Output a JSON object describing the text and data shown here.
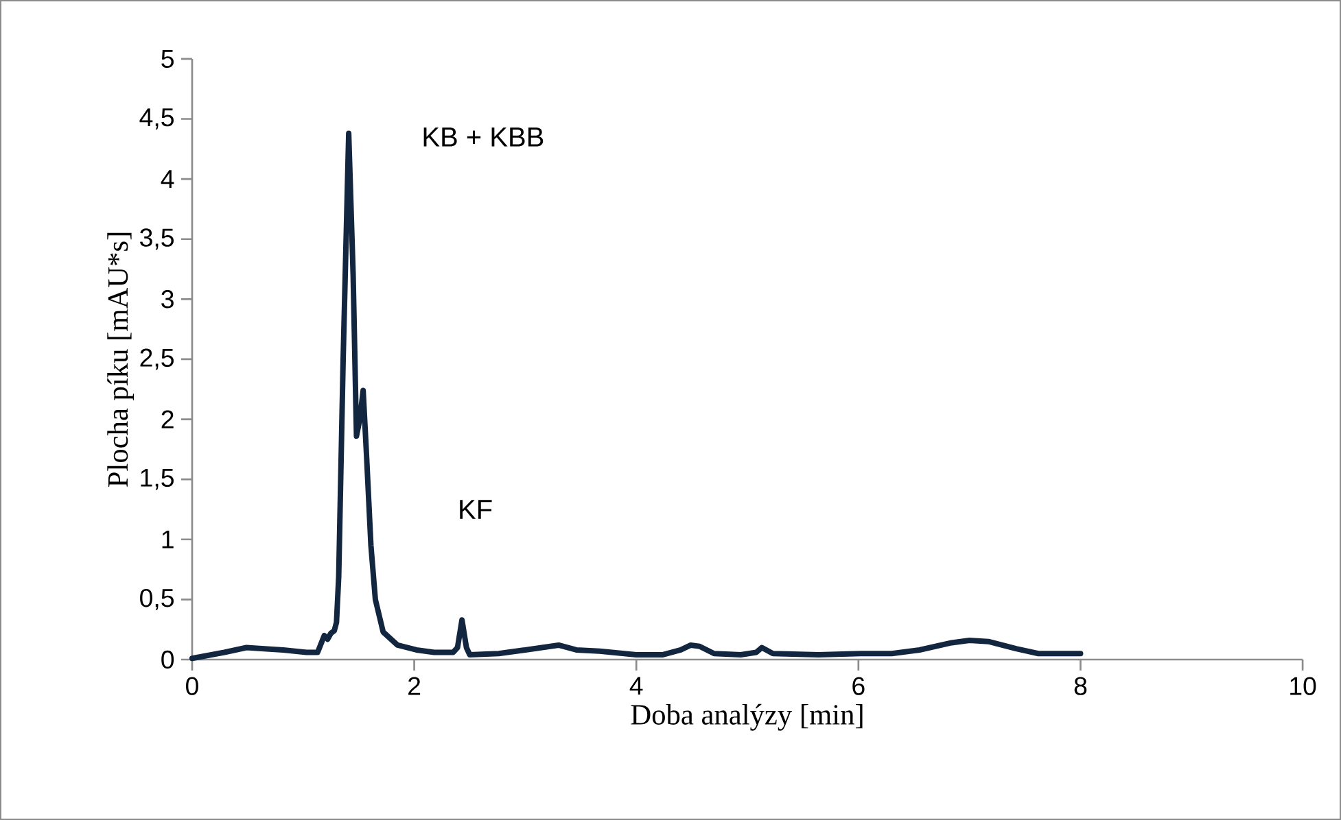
{
  "chart_data": {
    "type": "line",
    "xlabel": "Doba analýzy [min]",
    "ylabel": "Plocha píku [mAU*s]",
    "xlim": [
      0,
      10
    ],
    "xticks": [
      0,
      2,
      4,
      6,
      8,
      10
    ],
    "ylim": [
      0,
      5
    ],
    "yticks": [
      0,
      {
        "value": 0.5,
        "label": "0,5"
      },
      1,
      {
        "value": 1.5,
        "label": "1,5"
      },
      2,
      {
        "value": 2.5,
        "label": "2,5"
      },
      3,
      {
        "value": 3.5,
        "label": "3,5"
      },
      4,
      {
        "value": 4.5,
        "label": "4,5"
      },
      5
    ],
    "annotations": [
      "KB + KBB",
      "KF"
    ],
    "series": [
      {
        "color": "#13263f",
        "x": [
          0,
          0.29,
          0.49,
          0.65,
          0.82,
          1.03,
          1.13,
          1.19,
          1.22,
          1.25,
          1.28,
          1.3,
          1.32,
          1.36,
          1.41,
          1.45,
          1.48,
          1.51,
          1.54,
          1.57,
          1.61,
          1.65,
          1.72,
          1.85,
          2.02,
          2.18,
          2.35,
          2.39,
          2.43,
          2.47,
          2.5,
          2.76,
          3.0,
          3.3,
          3.46,
          3.67,
          4.0,
          4.24,
          4.4,
          4.49,
          4.57,
          4.7,
          4.94,
          5.08,
          5.13,
          5.23,
          5.64,
          6.02,
          6.3,
          6.55,
          6.84,
          7.0,
          7.17,
          7.42,
          7.62,
          8.0
        ],
        "values": [
          0.01,
          0.06,
          0.1,
          0.09,
          0.08,
          0.06,
          0.06,
          0.2,
          0.17,
          0.22,
          0.24,
          0.31,
          0.69,
          2.5,
          4.38,
          3.2,
          1.86,
          2.0,
          2.24,
          1.71,
          0.95,
          0.5,
          0.23,
          0.12,
          0.08,
          0.06,
          0.06,
          0.1,
          0.33,
          0.1,
          0.04,
          0.05,
          0.08,
          0.12,
          0.08,
          0.07,
          0.04,
          0.04,
          0.08,
          0.12,
          0.11,
          0.05,
          0.04,
          0.06,
          0.1,
          0.05,
          0.04,
          0.05,
          0.05,
          0.08,
          0.14,
          0.16,
          0.15,
          0.09,
          0.05,
          0.05
        ]
      }
    ]
  }
}
